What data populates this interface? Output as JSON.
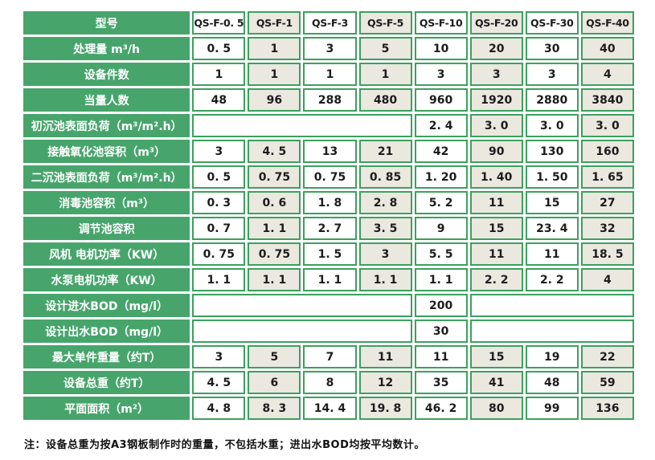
{
  "colors": {
    "label_green": "#47a56c",
    "border_green": "#3ca05e",
    "cell_gray": "#eae8df",
    "cell_white": "#ffffff",
    "label_text": "#ffffff",
    "value_text": "#1c1c1c"
  },
  "table": {
    "corner_label": "型号",
    "models": [
      "QS-F-0. 5",
      "QS-F-1",
      "QS-F-3",
      "QS-F-5",
      "QS-F-10",
      "QS-F-20",
      "QS-F-30",
      "QS-F-40"
    ],
    "rows": [
      {
        "label": "处理量 m³/h",
        "type": "full",
        "values": [
          "0. 5",
          "1",
          "3",
          "5",
          "10",
          "20",
          "30",
          "40"
        ]
      },
      {
        "label": "设备件数",
        "type": "full",
        "values": [
          "1",
          "1",
          "1",
          "1",
          "3",
          "3",
          "3",
          "4"
        ]
      },
      {
        "label": "当量人数",
        "type": "full",
        "values": [
          "48",
          "96",
          "288",
          "480",
          "960",
          "1920",
          "2880",
          "3840"
        ]
      },
      {
        "label": "初沉池表面负荷（m³/m².h）",
        "type": "merged-left",
        "values": [
          "2. 4",
          "3. 0",
          "3. 0",
          "3. 0"
        ]
      },
      {
        "label": "接触氧化池容积（m³）",
        "type": "full",
        "values": [
          "3",
          "4. 5",
          "13",
          "21",
          "42",
          "90",
          "130",
          "160"
        ]
      },
      {
        "label": "二沉池表面负荷（m³/m².h）",
        "type": "full",
        "values": [
          "0. 5",
          "0. 75",
          "0. 75",
          "0. 85",
          "1. 20",
          "1. 40",
          "1. 50",
          "1. 65"
        ]
      },
      {
        "label": "消毒池容积（m³）",
        "type": "full",
        "values": [
          "0. 3",
          "0. 6",
          "1. 8",
          "2. 8",
          "5. 2",
          "11",
          "15",
          "27"
        ]
      },
      {
        "label": "调节池容积",
        "type": "full",
        "values": [
          "0. 7",
          "1. 1",
          "2. 7",
          "3. 5",
          "9",
          "15",
          "23. 4",
          "32"
        ]
      },
      {
        "label": "风机 电机功率（KW）",
        "type": "full",
        "values": [
          "0. 75",
          "0. 75",
          "1. 5",
          "3",
          "5. 5",
          "11",
          "11",
          "18. 5"
        ]
      },
      {
        "label": "水泵电机功率（KW）",
        "type": "full",
        "values": [
          "1. 1",
          "1. 1",
          "1. 1",
          "1. 1",
          "1. 1",
          "2. 2",
          "2. 2",
          "4"
        ]
      },
      {
        "label": "设计进水BOD（mg/l）",
        "type": "single",
        "value": "200"
      },
      {
        "label": "设计出水BOD（mg/l）",
        "type": "single",
        "value": "30"
      },
      {
        "label": "最大单件重量（约T）",
        "type": "full",
        "values": [
          "3",
          "5",
          "7",
          "11",
          "11",
          "15",
          "19",
          "22"
        ]
      },
      {
        "label": "设备总重（约T）",
        "type": "full",
        "values": [
          "4. 5",
          "6",
          "8",
          "12",
          "35",
          "41",
          "48",
          "59"
        ]
      },
      {
        "label": "平面面积（m²）",
        "type": "full",
        "values": [
          "4. 8",
          "8. 3",
          "14. 4",
          "19. 8",
          "46. 2",
          "80",
          "99",
          "136"
        ]
      }
    ],
    "note": "注：设备总重为按A3钢板制作时的重量，不包括水重；进出水BOD均按平均数计。"
  }
}
